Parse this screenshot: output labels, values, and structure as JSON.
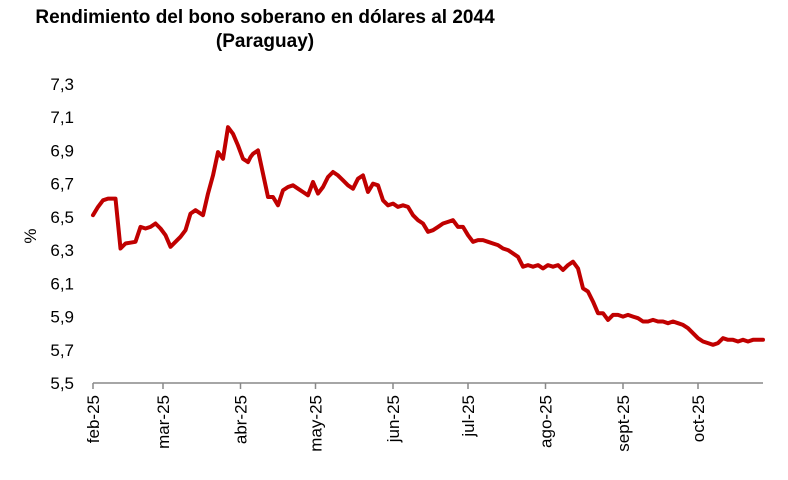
{
  "chart_data": {
    "type": "line",
    "title": "Rendimiento del bono soberano en dólares al 2044",
    "subtitle": "(Paraguay)",
    "ylabel": "%",
    "xlabel": "",
    "ylim": [
      5.5,
      7.3
    ],
    "yticks": [
      "7,3",
      "7,1",
      "6,9",
      "6,7",
      "6,5",
      "6,3",
      "6,1",
      "5,9",
      "5,7",
      "5,5"
    ],
    "yticks_values": [
      7.3,
      7.1,
      6.9,
      6.7,
      6.5,
      6.3,
      6.1,
      5.9,
      5.7,
      5.5
    ],
    "xticks": [
      "feb-25",
      "mar-25",
      "abr-25",
      "may-25",
      "jun-25",
      "jul-25",
      "ago-25",
      "sept-25",
      "oct-25"
    ],
    "xlim": [
      "2025-02-01",
      "2025-10-27"
    ],
    "grid": false,
    "series": [
      {
        "color": "#c00000",
        "x": [
          "2025-02-01",
          "2025-02-03",
          "2025-02-05",
          "2025-02-07",
          "2025-02-10",
          "2025-02-12",
          "2025-02-14",
          "2025-02-18",
          "2025-02-20",
          "2025-02-22",
          "2025-02-24",
          "2025-02-26",
          "2025-02-28",
          "2025-03-02",
          "2025-03-04",
          "2025-03-06",
          "2025-03-08",
          "2025-03-10",
          "2025-03-12",
          "2025-03-14",
          "2025-03-17",
          "2025-03-19",
          "2025-03-21",
          "2025-03-23",
          "2025-03-25",
          "2025-03-27",
          "2025-03-29",
          "2025-03-31",
          "2025-04-02",
          "2025-04-03",
          "2025-04-04",
          "2025-04-05",
          "2025-04-06",
          "2025-04-08",
          "2025-04-10",
          "2025-04-12",
          "2025-04-14",
          "2025-04-16",
          "2025-04-18",
          "2025-04-20",
          "2025-04-22",
          "2025-04-24",
          "2025-04-26",
          "2025-04-28",
          "2025-04-30",
          "2025-05-02",
          "2025-05-04",
          "2025-05-06",
          "2025-05-08",
          "2025-05-10",
          "2025-05-12",
          "2025-05-14",
          "2025-05-16",
          "2025-05-18",
          "2025-05-20",
          "2025-05-22",
          "2025-05-24",
          "2025-05-26",
          "2025-05-28",
          "2025-05-30",
          "2025-06-01",
          "2025-06-03",
          "2025-06-05",
          "2025-06-07",
          "2025-06-09",
          "2025-06-11",
          "2025-06-13",
          "2025-06-15",
          "2025-06-17",
          "2025-06-19",
          "2025-06-21",
          "2025-06-23",
          "2025-06-25",
          "2025-06-27",
          "2025-06-29",
          "2025-07-01",
          "2025-07-03",
          "2025-07-05",
          "2025-07-07",
          "2025-07-09",
          "2025-07-11",
          "2025-07-13",
          "2025-07-15",
          "2025-07-17",
          "2025-07-19",
          "2025-07-21",
          "2025-07-23",
          "2025-07-25",
          "2025-07-27",
          "2025-07-29",
          "2025-07-31",
          "2025-08-02",
          "2025-08-04",
          "2025-08-06",
          "2025-08-08",
          "2025-08-10",
          "2025-08-12",
          "2025-08-14",
          "2025-08-16",
          "2025-08-18",
          "2025-08-20",
          "2025-08-22",
          "2025-08-24",
          "2025-08-26",
          "2025-08-28",
          "2025-08-30",
          "2025-09-01",
          "2025-09-03",
          "2025-09-05",
          "2025-09-07",
          "2025-09-09",
          "2025-09-11",
          "2025-09-13",
          "2025-09-15",
          "2025-09-17",
          "2025-09-19",
          "2025-09-21",
          "2025-09-23",
          "2025-09-25",
          "2025-09-27",
          "2025-09-29",
          "2025-10-01",
          "2025-10-03",
          "2025-10-05",
          "2025-10-07",
          "2025-10-09",
          "2025-10-11",
          "2025-10-13",
          "2025-10-15",
          "2025-10-17",
          "2025-10-19",
          "2025-10-21",
          "2025-10-23",
          "2025-10-25",
          "2025-10-27"
        ],
        "values": [
          6.51,
          6.56,
          6.6,
          6.61,
          6.61,
          6.31,
          6.34,
          6.35,
          6.44,
          6.43,
          6.44,
          6.46,
          6.43,
          6.39,
          6.32,
          6.35,
          6.38,
          6.42,
          6.52,
          6.54,
          6.51,
          6.64,
          6.75,
          6.89,
          6.85,
          7.04,
          7.0,
          6.93,
          6.85,
          6.84,
          6.83,
          6.86,
          6.88,
          6.9,
          6.76,
          6.62,
          6.62,
          6.57,
          6.66,
          6.68,
          6.69,
          6.67,
          6.65,
          6.63,
          6.71,
          6.64,
          6.68,
          6.74,
          6.77,
          6.75,
          6.72,
          6.69,
          6.67,
          6.73,
          6.75,
          6.65,
          6.7,
          6.69,
          6.6,
          6.57,
          6.58,
          6.56,
          6.57,
          6.56,
          6.51,
          6.48,
          6.46,
          6.41,
          6.42,
          6.44,
          6.46,
          6.47,
          6.48,
          6.44,
          6.44,
          6.39,
          6.35,
          6.36,
          6.36,
          6.35,
          6.34,
          6.33,
          6.31,
          6.3,
          6.28,
          6.26,
          6.2,
          6.21,
          6.2,
          6.21,
          6.19,
          6.21,
          6.2,
          6.21,
          6.18,
          6.21,
          6.23,
          6.19,
          6.07,
          6.05,
          5.99,
          5.92,
          5.92,
          5.88,
          5.91,
          5.91,
          5.9,
          5.91,
          5.9,
          5.89,
          5.87,
          5.87,
          5.88,
          5.87,
          5.87,
          5.86,
          5.87,
          5.86,
          5.85,
          5.83,
          5.8,
          5.77,
          5.75,
          5.74,
          5.73,
          5.74,
          5.77,
          5.76,
          5.76,
          5.75,
          5.76,
          5.75,
          5.76,
          5.76,
          5.76
        ]
      }
    ]
  }
}
